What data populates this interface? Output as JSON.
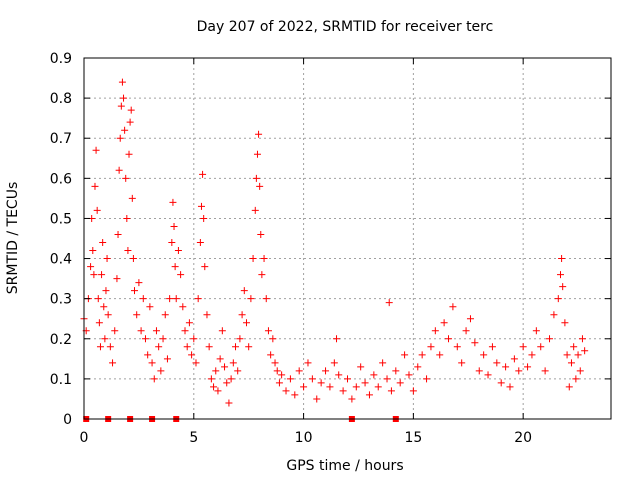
{
  "chart_data": {
    "type": "scatter",
    "title": "Day 207 of 2022, SRMTID for receiver terc",
    "xlabel": "GPS time / hours",
    "ylabel": "SRMTID / TECUs",
    "xlim": [
      0,
      24
    ],
    "ylim": [
      0,
      0.9
    ],
    "x_ticks": [
      0,
      5,
      10,
      15,
      20
    ],
    "y_ticks": [
      0,
      0.1,
      0.2,
      0.3,
      0.4,
      0.5,
      0.6,
      0.7,
      0.8,
      0.9
    ],
    "x_tick_labels": [
      "0",
      "5",
      "10",
      "15",
      "20"
    ],
    "y_tick_labels": [
      "0",
      "0.1",
      "0.2",
      "0.3",
      "0.4",
      "0.5",
      "0.6",
      "0.7",
      "0.8",
      "0.9"
    ],
    "grid": true,
    "marker": "+",
    "colors": {
      "series": "#ff0000"
    },
    "series": [
      {
        "name": "SRMTID",
        "points": [
          [
            0.0,
            0.25
          ],
          [
            0.1,
            0.22
          ],
          [
            0.2,
            0.3
          ],
          [
            0.3,
            0.38
          ],
          [
            0.35,
            0.5
          ],
          [
            0.4,
            0.42
          ],
          [
            0.45,
            0.36
          ],
          [
            0.5,
            0.58
          ],
          [
            0.55,
            0.67
          ],
          [
            0.6,
            0.52
          ],
          [
            0.65,
            0.3
          ],
          [
            0.7,
            0.24
          ],
          [
            0.75,
            0.18
          ],
          [
            0.8,
            0.36
          ],
          [
            0.85,
            0.44
          ],
          [
            0.9,
            0.28
          ],
          [
            0.95,
            0.2
          ],
          [
            1.0,
            0.32
          ],
          [
            1.05,
            0.4
          ],
          [
            1.1,
            0.26
          ],
          [
            1.2,
            0.18
          ],
          [
            1.3,
            0.14
          ],
          [
            1.4,
            0.22
          ],
          [
            1.5,
            0.35
          ],
          [
            1.55,
            0.46
          ],
          [
            1.6,
            0.62
          ],
          [
            1.65,
            0.7
          ],
          [
            1.7,
            0.78
          ],
          [
            1.75,
            0.84
          ],
          [
            1.8,
            0.8
          ],
          [
            1.85,
            0.72
          ],
          [
            1.9,
            0.6
          ],
          [
            1.95,
            0.5
          ],
          [
            2.0,
            0.42
          ],
          [
            2.05,
            0.66
          ],
          [
            2.1,
            0.74
          ],
          [
            2.15,
            0.77
          ],
          [
            2.2,
            0.55
          ],
          [
            2.25,
            0.4
          ],
          [
            2.3,
            0.32
          ],
          [
            2.4,
            0.26
          ],
          [
            2.5,
            0.34
          ],
          [
            2.6,
            0.22
          ],
          [
            2.7,
            0.3
          ],
          [
            2.8,
            0.2
          ],
          [
            2.9,
            0.16
          ],
          [
            3.0,
            0.28
          ],
          [
            3.1,
            0.14
          ],
          [
            3.2,
            0.1
          ],
          [
            3.3,
            0.22
          ],
          [
            3.4,
            0.18
          ],
          [
            3.5,
            0.12
          ],
          [
            3.6,
            0.2
          ],
          [
            3.7,
            0.26
          ],
          [
            3.8,
            0.15
          ],
          [
            3.9,
            0.3
          ],
          [
            4.0,
            0.44
          ],
          [
            4.05,
            0.54
          ],
          [
            4.1,
            0.48
          ],
          [
            4.15,
            0.38
          ],
          [
            4.2,
            0.3
          ],
          [
            4.3,
            0.42
          ],
          [
            4.4,
            0.36
          ],
          [
            4.5,
            0.28
          ],
          [
            4.6,
            0.22
          ],
          [
            4.7,
            0.18
          ],
          [
            4.8,
            0.24
          ],
          [
            4.9,
            0.16
          ],
          [
            5.0,
            0.2
          ],
          [
            5.1,
            0.14
          ],
          [
            5.2,
            0.3
          ],
          [
            5.3,
            0.44
          ],
          [
            5.35,
            0.53
          ],
          [
            5.4,
            0.61
          ],
          [
            5.45,
            0.5
          ],
          [
            5.5,
            0.38
          ],
          [
            5.6,
            0.26
          ],
          [
            5.7,
            0.18
          ],
          [
            5.8,
            0.1
          ],
          [
            5.9,
            0.08
          ],
          [
            6.0,
            0.12
          ],
          [
            6.1,
            0.07
          ],
          [
            6.2,
            0.15
          ],
          [
            6.3,
            0.22
          ],
          [
            6.4,
            0.13
          ],
          [
            6.5,
            0.09
          ],
          [
            6.6,
            0.04
          ],
          [
            6.7,
            0.1
          ],
          [
            6.8,
            0.14
          ],
          [
            6.9,
            0.18
          ],
          [
            7.0,
            0.12
          ],
          [
            7.1,
            0.2
          ],
          [
            7.2,
            0.26
          ],
          [
            7.3,
            0.32
          ],
          [
            7.4,
            0.24
          ],
          [
            7.5,
            0.18
          ],
          [
            7.6,
            0.3
          ],
          [
            7.7,
            0.4
          ],
          [
            7.8,
            0.52
          ],
          [
            7.85,
            0.6
          ],
          [
            7.9,
            0.66
          ],
          [
            7.95,
            0.71
          ],
          [
            8.0,
            0.58
          ],
          [
            8.05,
            0.46
          ],
          [
            8.1,
            0.36
          ],
          [
            8.2,
            0.4
          ],
          [
            8.3,
            0.3
          ],
          [
            8.4,
            0.22
          ],
          [
            8.5,
            0.16
          ],
          [
            8.6,
            0.2
          ],
          [
            8.7,
            0.14
          ],
          [
            8.8,
            0.12
          ],
          [
            8.9,
            0.09
          ],
          [
            9.0,
            0.11
          ],
          [
            9.2,
            0.07
          ],
          [
            9.4,
            0.1
          ],
          [
            9.6,
            0.06
          ],
          [
            9.8,
            0.12
          ],
          [
            10.0,
            0.08
          ],
          [
            10.2,
            0.14
          ],
          [
            10.4,
            0.1
          ],
          [
            10.6,
            0.05
          ],
          [
            10.8,
            0.09
          ],
          [
            11.0,
            0.12
          ],
          [
            11.2,
            0.08
          ],
          [
            11.4,
            0.14
          ],
          [
            11.5,
            0.2
          ],
          [
            11.6,
            0.11
          ],
          [
            11.8,
            0.07
          ],
          [
            12.0,
            0.1
          ],
          [
            12.2,
            0.05
          ],
          [
            12.4,
            0.08
          ],
          [
            12.6,
            0.13
          ],
          [
            12.8,
            0.09
          ],
          [
            13.0,
            0.06
          ],
          [
            13.2,
            0.11
          ],
          [
            13.4,
            0.08
          ],
          [
            13.6,
            0.14
          ],
          [
            13.8,
            0.1
          ],
          [
            13.9,
            0.29
          ],
          [
            14.0,
            0.07
          ],
          [
            14.2,
            0.12
          ],
          [
            14.4,
            0.09
          ],
          [
            14.6,
            0.16
          ],
          [
            14.8,
            0.11
          ],
          [
            15.0,
            0.07
          ],
          [
            15.2,
            0.13
          ],
          [
            15.4,
            0.16
          ],
          [
            15.6,
            0.1
          ],
          [
            15.8,
            0.18
          ],
          [
            16.0,
            0.22
          ],
          [
            16.2,
            0.16
          ],
          [
            16.4,
            0.24
          ],
          [
            16.6,
            0.2
          ],
          [
            16.8,
            0.28
          ],
          [
            17.0,
            0.18
          ],
          [
            17.2,
            0.14
          ],
          [
            17.4,
            0.22
          ],
          [
            17.6,
            0.25
          ],
          [
            17.8,
            0.19
          ],
          [
            18.0,
            0.12
          ],
          [
            18.2,
            0.16
          ],
          [
            18.4,
            0.11
          ],
          [
            18.6,
            0.18
          ],
          [
            18.8,
            0.14
          ],
          [
            19.0,
            0.09
          ],
          [
            19.2,
            0.13
          ],
          [
            19.4,
            0.08
          ],
          [
            19.6,
            0.15
          ],
          [
            19.8,
            0.12
          ],
          [
            20.0,
            0.18
          ],
          [
            20.2,
            0.13
          ],
          [
            20.4,
            0.16
          ],
          [
            20.6,
            0.22
          ],
          [
            20.8,
            0.18
          ],
          [
            21.0,
            0.12
          ],
          [
            21.2,
            0.2
          ],
          [
            21.4,
            0.26
          ],
          [
            21.6,
            0.3
          ],
          [
            21.7,
            0.36
          ],
          [
            21.75,
            0.4
          ],
          [
            21.8,
            0.33
          ],
          [
            21.9,
            0.24
          ],
          [
            22.0,
            0.16
          ],
          [
            22.1,
            0.08
          ],
          [
            22.2,
            0.14
          ],
          [
            22.3,
            0.18
          ],
          [
            22.4,
            0.1
          ],
          [
            22.5,
            0.16
          ],
          [
            22.6,
            0.12
          ],
          [
            22.7,
            0.2
          ],
          [
            22.8,
            0.17
          ]
        ]
      }
    ],
    "baseline_markers_x": [
      0.1,
      1.1,
      2.1,
      3.1,
      4.2,
      12.2,
      14.2
    ]
  }
}
